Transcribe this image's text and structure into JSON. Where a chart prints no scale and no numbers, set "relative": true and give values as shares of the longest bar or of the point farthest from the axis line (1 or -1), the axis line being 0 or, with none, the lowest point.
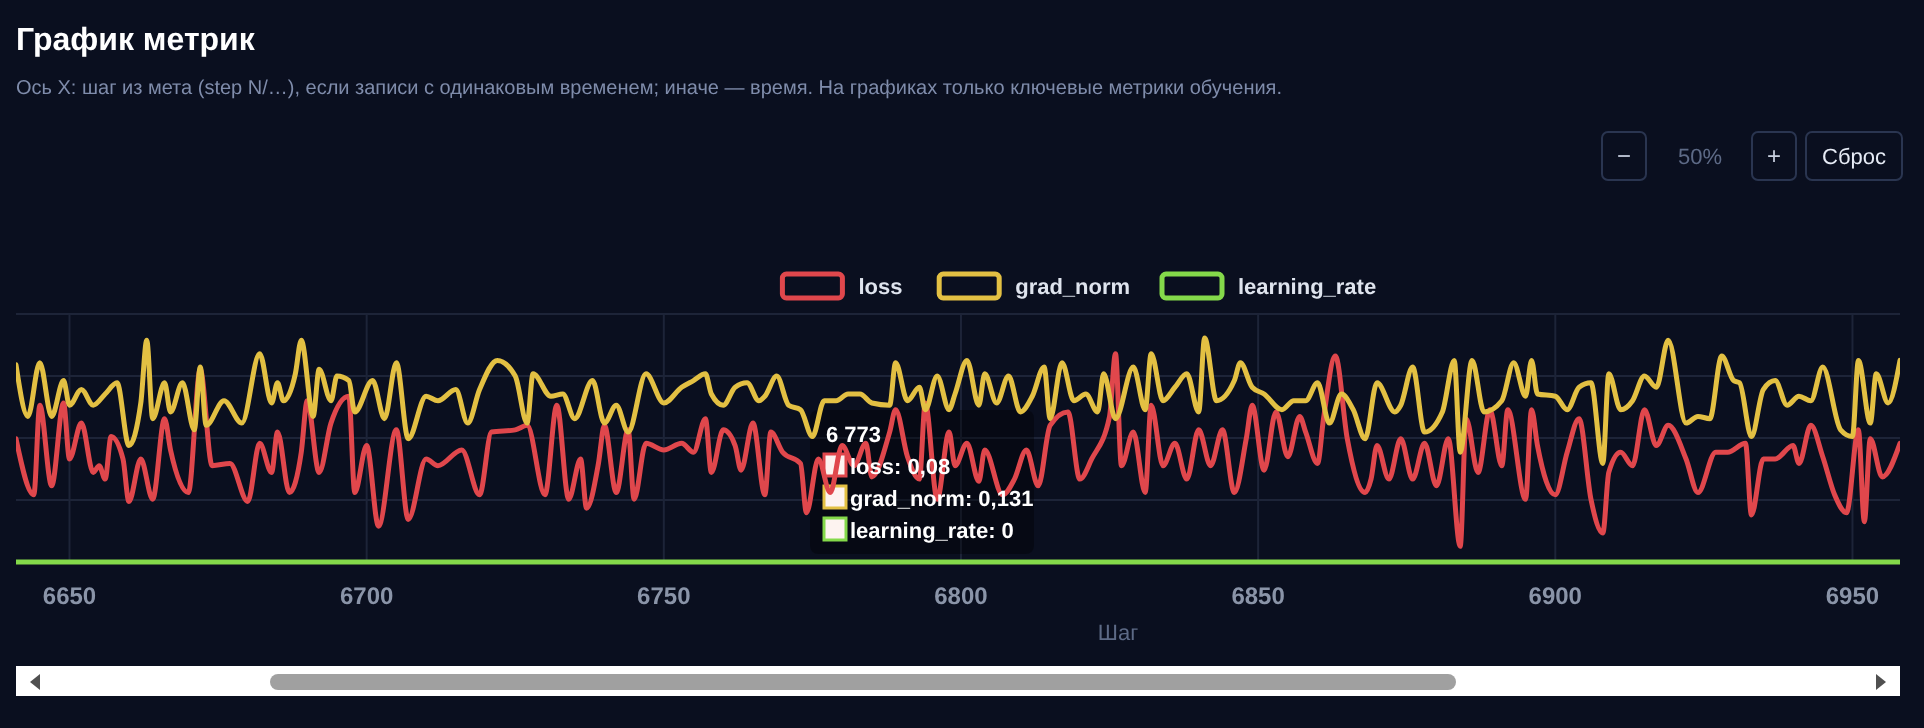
{
  "chart_data": {
    "type": "line",
    "title": "График метрик",
    "subtitle": "Ось X: шаг из мета (step N/…), если записи с одинаковым временем; иначе — время. На графиках только ключевые метрики обучения.",
    "xlabel": "Шаг",
    "relative": true,
    "xlim": [
      6641,
      6958
    ],
    "xticks": [
      6650,
      6700,
      6750,
      6800,
      6850,
      6900,
      6950
    ],
    "grid": true,
    "legend": "top",
    "marker": "none",
    "line_style": "solid",
    "annotations": [
      "6 773",
      "loss: 0,08",
      "grad_norm: 0,131",
      "learning_rate: 0",
      "−",
      "50%",
      "+",
      "Сброс"
    ],
    "series": [
      {
        "name": "loss",
        "color": "#e0474c",
        "x": [
          6641,
          6644,
          6645,
          6647,
          6649,
          6650,
          6652,
          6654,
          6655,
          6656,
          6657,
          6659,
          6660,
          6662,
          6664,
          6666,
          6667,
          6670,
          6672,
          6674,
          6677,
          6680,
          6682,
          6684,
          6685,
          6687,
          6689,
          6690,
          6692,
          6694,
          6697,
          6698,
          6700,
          6702,
          6705,
          6707,
          6710,
          6712,
          6716,
          6719,
          6721,
          6725,
          6727,
          6730,
          6732,
          6734,
          6736,
          6737,
          6739,
          6740,
          6742,
          6744,
          6745,
          6747,
          6750,
          6753,
          6755,
          6757,
          6758,
          6760,
          6762,
          6763,
          6765,
          6767,
          6768,
          6770,
          6773,
          6774,
          6776,
          6778,
          6780,
          6782,
          6784,
          6785,
          6788,
          6789,
          6791,
          6793,
          6794,
          6796,
          6798,
          6799,
          6801,
          6803,
          6804,
          6807,
          6809,
          6811,
          6813,
          6815,
          6818,
          6820,
          6822,
          6825,
          6826,
          6827,
          6829,
          6831,
          6832,
          6834,
          6836,
          6838,
          6840,
          6842,
          6844,
          6846,
          6848,
          6849,
          6851,
          6853,
          6855,
          6857,
          6858,
          6860,
          6861,
          6863,
          6865,
          6868,
          6869,
          6870,
          6872,
          6874,
          6876,
          6878,
          6880,
          6882,
          6884,
          6885,
          6887,
          6889,
          6891,
          6892,
          6895,
          6896,
          6897,
          6900,
          6902,
          6904,
          6906,
          6908,
          6909,
          6911,
          6913,
          6915,
          6917,
          6919,
          6922,
          6924,
          6927,
          6929,
          6932,
          6933,
          6935,
          6937,
          6940,
          6941,
          6943,
          6945,
          6947,
          6949,
          6951,
          6952,
          6953,
          6955,
          6958
        ],
        "values": [
          0.55,
          0.3,
          0.7,
          0.34,
          0.71,
          0.46,
          0.62,
          0.4,
          0.43,
          0.37,
          0.56,
          0.46,
          0.27,
          0.46,
          0.28,
          0.64,
          0.5,
          0.31,
          0.86,
          0.43,
          0.44,
          0.27,
          0.53,
          0.4,
          0.58,
          0.31,
          0.49,
          0.72,
          0.4,
          0.62,
          0.74,
          0.31,
          0.52,
          0.16,
          0.59,
          0.19,
          0.46,
          0.43,
          0.5,
          0.3,
          0.58,
          0.59,
          0.61,
          0.3,
          0.7,
          0.28,
          0.46,
          0.24,
          0.44,
          0.61,
          0.31,
          0.59,
          0.28,
          0.53,
          0.5,
          0.53,
          0.49,
          0.64,
          0.4,
          0.59,
          0.52,
          0.41,
          0.62,
          0.3,
          0.58,
          0.49,
          0.44,
          0.22,
          0.46,
          0.31,
          0.52,
          0.43,
          0.53,
          0.38,
          0.58,
          0.68,
          0.47,
          0.37,
          0.71,
          0.28,
          0.58,
          0.43,
          0.53,
          0.36,
          0.5,
          0.3,
          0.37,
          0.5,
          0.34,
          0.61,
          0.67,
          0.37,
          0.46,
          0.65,
          0.93,
          0.43,
          0.58,
          0.31,
          0.7,
          0.43,
          0.53,
          0.37,
          0.59,
          0.43,
          0.59,
          0.31,
          0.55,
          0.7,
          0.41,
          0.67,
          0.47,
          0.65,
          0.58,
          0.44,
          0.64,
          0.92,
          0.55,
          0.31,
          0.37,
          0.52,
          0.37,
          0.55,
          0.37,
          0.53,
          0.34,
          0.55,
          0.07,
          0.64,
          0.4,
          0.68,
          0.43,
          0.68,
          0.28,
          0.68,
          0.52,
          0.3,
          0.49,
          0.64,
          0.28,
          0.13,
          0.4,
          0.49,
          0.43,
          0.68,
          0.52,
          0.61,
          0.46,
          0.31,
          0.49,
          0.49,
          0.53,
          0.21,
          0.46,
          0.46,
          0.52,
          0.44,
          0.61,
          0.47,
          0.3,
          0.22,
          0.59,
          0.18,
          0.55,
          0.38,
          0.53
        ]
      },
      {
        "name": "grad_norm",
        "color": "#e3c043",
        "x": [
          6641,
          6643,
          6645,
          6647,
          6649,
          6650,
          6652,
          6654,
          6656,
          6658,
          6660,
          6662,
          6663,
          6664,
          6666,
          6667,
          6669,
          6671,
          6672,
          6673,
          6676,
          6679,
          6682,
          6684,
          6685,
          6686,
          6688,
          6689,
          6691,
          6692,
          6694,
          6695,
          6697,
          6698,
          6701,
          6703,
          6705,
          6707,
          6710,
          6712,
          6715,
          6717,
          6719,
          6722,
          6725,
          6727,
          6728,
          6731,
          6733,
          6735,
          6738,
          6740,
          6742,
          6744,
          6747,
          6750,
          6753,
          6755,
          6757,
          6758,
          6760,
          6762,
          6764,
          6766,
          6767,
          6769,
          6771,
          6773,
          6775,
          6777,
          6779,
          6781,
          6783,
          6785,
          6788,
          6789,
          6791,
          6793,
          6794,
          6796,
          6798,
          6799,
          6801,
          6803,
          6804,
          6806,
          6808,
          6810,
          6812,
          6814,
          6815,
          6817,
          6819,
          6821,
          6823,
          6824,
          6826,
          6829,
          6831,
          6832,
          6834,
          6836,
          6838,
          6840,
          6841,
          6843,
          6846,
          6847,
          6849,
          6851,
          6854,
          6856,
          6858,
          6860,
          6862,
          6864,
          6866,
          6868,
          6870,
          6873,
          6874,
          6876,
          6878,
          6881,
          6883,
          6884,
          6886,
          6888,
          6891,
          6893,
          6895,
          6896,
          6897,
          6900,
          6902,
          6904,
          6906,
          6908,
          6909,
          6911,
          6913,
          6915,
          6917,
          6919,
          6922,
          6924,
          6926,
          6928,
          6930,
          6931,
          6933,
          6935,
          6937,
          6939,
          6941,
          6943,
          6945,
          6948,
          6950,
          6951,
          6953,
          6954,
          6956,
          6958
        ],
        "values": [
          0.88,
          0.65,
          0.89,
          0.65,
          0.81,
          0.7,
          0.77,
          0.7,
          0.75,
          0.8,
          0.52,
          0.71,
          0.99,
          0.64,
          0.8,
          0.67,
          0.8,
          0.59,
          0.87,
          0.61,
          0.72,
          0.62,
          0.93,
          0.71,
          0.8,
          0.72,
          0.84,
          0.99,
          0.65,
          0.86,
          0.72,
          0.83,
          0.81,
          0.67,
          0.81,
          0.64,
          0.89,
          0.55,
          0.74,
          0.72,
          0.77,
          0.62,
          0.77,
          0.9,
          0.83,
          0.62,
          0.84,
          0.74,
          0.75,
          0.64,
          0.81,
          0.62,
          0.7,
          0.58,
          0.84,
          0.71,
          0.78,
          0.81,
          0.84,
          0.75,
          0.7,
          0.78,
          0.8,
          0.72,
          0.74,
          0.83,
          0.7,
          0.68,
          0.56,
          0.72,
          0.72,
          0.75,
          0.75,
          0.71,
          0.7,
          0.89,
          0.72,
          0.78,
          0.68,
          0.83,
          0.68,
          0.75,
          0.9,
          0.7,
          0.84,
          0.71,
          0.83,
          0.67,
          0.74,
          0.87,
          0.64,
          0.89,
          0.72,
          0.75,
          0.67,
          0.84,
          0.64,
          0.87,
          0.68,
          0.93,
          0.72,
          0.78,
          0.84,
          0.67,
          1.0,
          0.72,
          0.81,
          0.89,
          0.78,
          0.75,
          0.68,
          0.72,
          0.72,
          0.8,
          0.62,
          0.75,
          0.68,
          0.55,
          0.8,
          0.67,
          0.7,
          0.87,
          0.58,
          0.67,
          0.9,
          0.49,
          0.9,
          0.67,
          0.72,
          0.89,
          0.74,
          0.9,
          0.75,
          0.74,
          0.68,
          0.78,
          0.8,
          0.44,
          0.84,
          0.68,
          0.72,
          0.83,
          0.78,
          0.99,
          0.62,
          0.65,
          0.64,
          0.92,
          0.81,
          0.8,
          0.56,
          0.77,
          0.81,
          0.7,
          0.74,
          0.72,
          0.87,
          0.59,
          0.56,
          0.9,
          0.62,
          0.84,
          0.71,
          0.9
        ]
      },
      {
        "name": "learning_rate",
        "color": "#84d94a",
        "x": [
          6641,
          6958
        ],
        "values": [
          0,
          0
        ]
      }
    ]
  }
}
